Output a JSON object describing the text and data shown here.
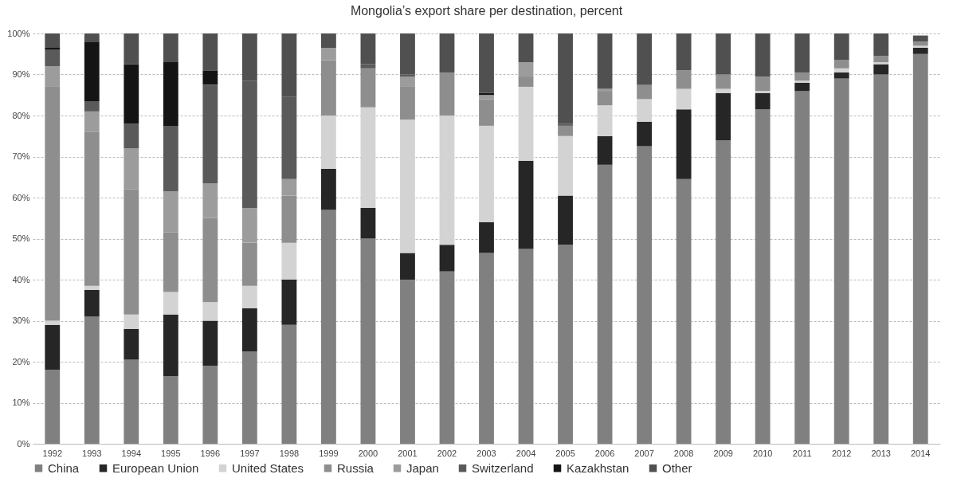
{
  "chart_data": {
    "type": "bar",
    "stacked": true,
    "title": "Mongolia’s export share per destination, percent",
    "categories": [
      "1992",
      "1993",
      "1994",
      "1995",
      "1996",
      "1997",
      "1998",
      "1999",
      "2000",
      "2001",
      "2002",
      "2003",
      "2004",
      "2005",
      "2006",
      "2007",
      "2008",
      "2009",
      "2010",
      "2011",
      "2012",
      "2013",
      "2014"
    ],
    "series": [
      {
        "name": "China",
        "color": "#808080",
        "values": [
          18,
          31,
          20.5,
          16.5,
          19,
          22.5,
          29,
          57,
          50,
          40,
          42,
          46.5,
          47.5,
          48.5,
          68,
          72.5,
          64.5,
          74,
          81.5,
          86,
          89,
          90,
          95
        ]
      },
      {
        "name": "European Union",
        "color": "#262626",
        "values": [
          11,
          6.5,
          7.5,
          15,
          11,
          10.5,
          11,
          10,
          7.5,
          6.5,
          6.5,
          7.5,
          21.5,
          12,
          7,
          6,
          17,
          11.5,
          4,
          2,
          1.5,
          2.5,
          1.5
        ]
      },
      {
        "name": "United States",
        "color": "#d3d3d3",
        "values": [
          1,
          1,
          3.5,
          5.5,
          4.5,
          5.5,
          9,
          13,
          24.5,
          32.5,
          31.5,
          23.5,
          18,
          14.5,
          7.5,
          5.5,
          5,
          1,
          0.5,
          0.5,
          1,
          0.5,
          0.5
        ]
      },
      {
        "name": "Russia",
        "color": "#8e8e8e",
        "values": [
          57,
          37.5,
          30.5,
          14.5,
          20.5,
          10.5,
          11.5,
          13.5,
          9.5,
          8,
          10.5,
          6.5,
          2.5,
          2.5,
          3.5,
          3.5,
          4.5,
          3.5,
          3.5,
          2,
          2,
          1.5,
          1
        ]
      },
      {
        "name": "Japan",
        "color": "#9c9c9c",
        "values": [
          5,
          5,
          10,
          10,
          8.5,
          8.5,
          4,
          3,
          0,
          2.5,
          0,
          1,
          3.5,
          0,
          0.5,
          0,
          0,
          0,
          0,
          0,
          0,
          0,
          0
        ]
      },
      {
        "name": "Switzerland",
        "color": "#5a5a5a",
        "values": [
          4,
          2.5,
          6,
          16,
          24,
          31,
          20,
          0,
          1,
          0.5,
          0,
          0,
          0,
          0.5,
          0,
          0,
          0,
          0,
          0,
          0,
          0,
          0,
          0
        ]
      },
      {
        "name": "Kazakhstan",
        "color": "#141414",
        "values": [
          0.5,
          14.5,
          14.5,
          15.5,
          3.5,
          0,
          0,
          0,
          0,
          0,
          0,
          0.5,
          0,
          0,
          0,
          0,
          0,
          0,
          0,
          0,
          0,
          0,
          0
        ]
      },
      {
        "name": "Other",
        "color": "#505050",
        "values": [
          3.5,
          2,
          7.5,
          7,
          9,
          11.5,
          15.5,
          3.5,
          7.5,
          10,
          9.5,
          14.5,
          7,
          22,
          13.5,
          12.5,
          9,
          10,
          10.5,
          9.5,
          6.5,
          5.5,
          1.5
        ]
      }
    ],
    "ylim": [
      0,
      100
    ],
    "yticks": [
      {
        "value": 0,
        "label": "0%"
      },
      {
        "value": 10,
        "label": "10%"
      },
      {
        "value": 20,
        "label": "20%"
      },
      {
        "value": 30,
        "label": "30%"
      },
      {
        "value": 40,
        "label": "40%"
      },
      {
        "value": 50,
        "label": "50%"
      },
      {
        "value": 60,
        "label": "60%"
      },
      {
        "value": 70,
        "label": "70%"
      },
      {
        "value": 80,
        "label": "80%"
      },
      {
        "value": 90,
        "label": "90%"
      },
      {
        "value": 100,
        "label": "100%"
      }
    ],
    "grid": "y",
    "legend": "bottom"
  }
}
